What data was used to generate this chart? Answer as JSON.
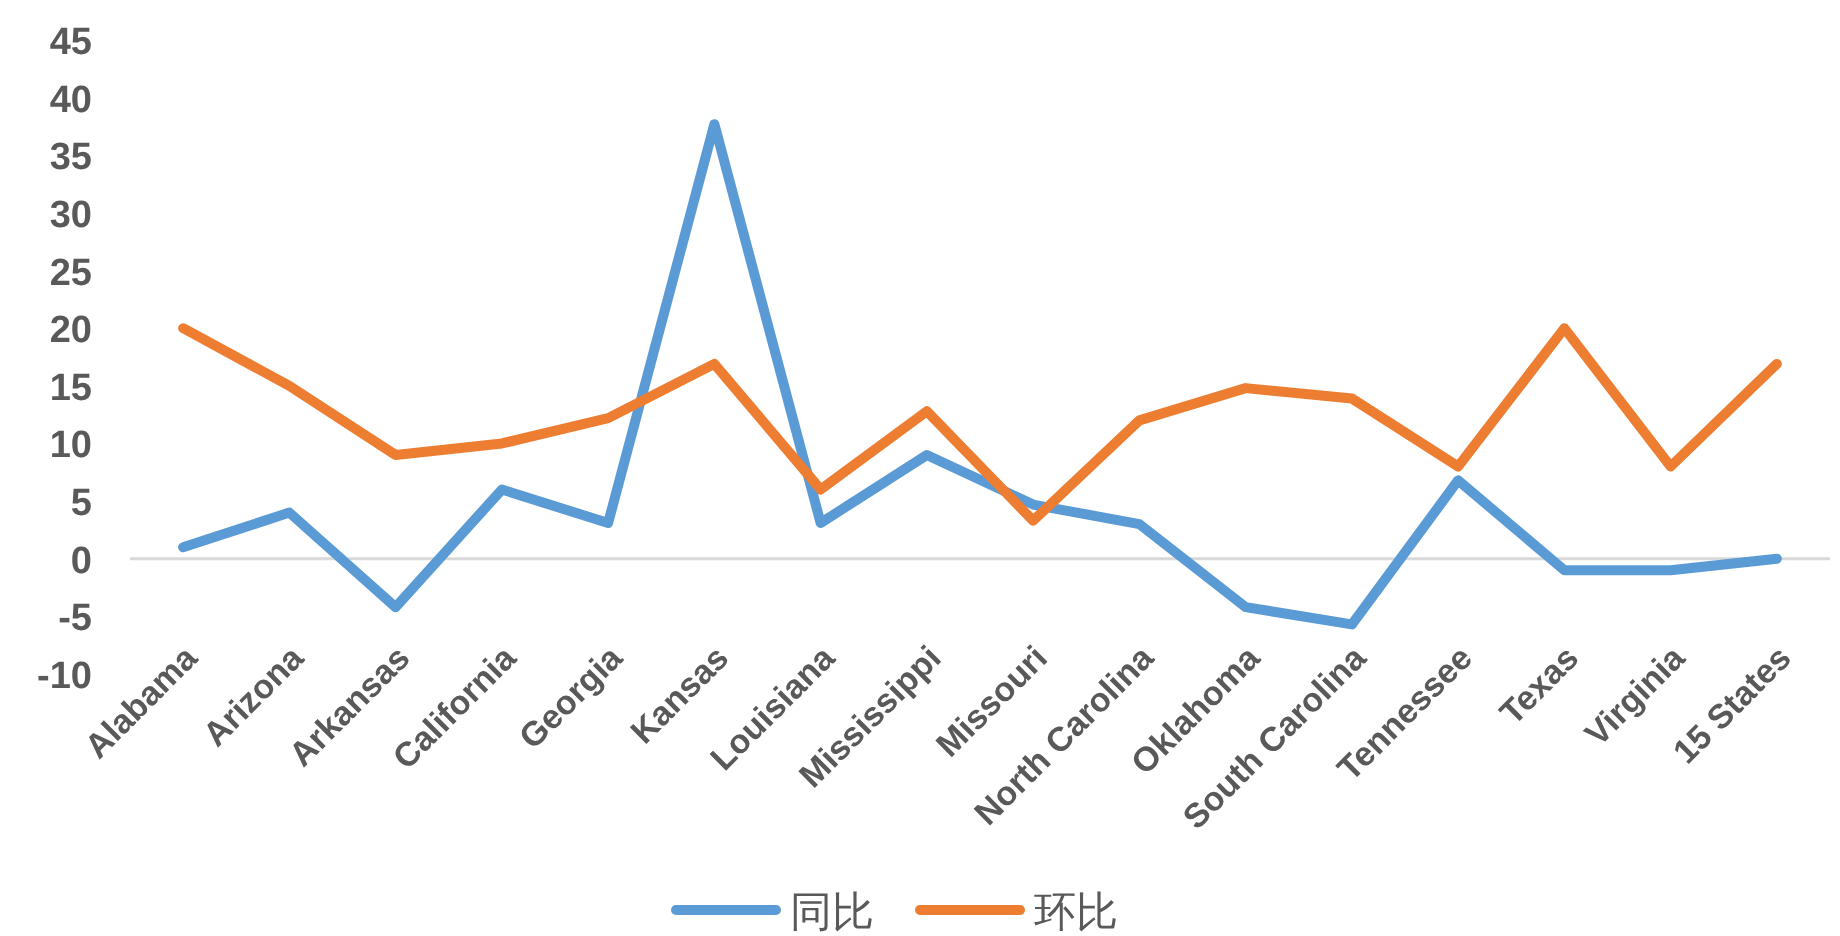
{
  "chart_data": {
    "type": "line",
    "categories": [
      "Alabama",
      "Arizona",
      "Arkansas",
      "California",
      "Georgia",
      "Kansas",
      "Louisiana",
      "Mississippi",
      "Missouri",
      "North Carolina",
      "Oklahoma",
      "South Carolina",
      "Tennessee",
      "Texas",
      "Virginia",
      "15 States"
    ],
    "series": [
      {
        "name": "同比",
        "color": "#5b9bd5",
        "values": [
          1,
          4,
          -4.2,
          6,
          3.1,
          37.7,
          3.1,
          9,
          4.7,
          3,
          -4.2,
          -5.7,
          6.8,
          -1,
          -1,
          0
        ]
      },
      {
        "name": "环比",
        "color": "#ed7d31",
        "values": [
          20,
          15,
          9,
          10,
          12.2,
          16.9,
          6,
          12.8,
          3.3,
          12,
          14.8,
          13.9,
          8,
          20,
          8,
          16.9
        ]
      }
    ],
    "ylim": [
      -10,
      45
    ],
    "yticks": [
      -10,
      -5,
      0,
      5,
      10,
      15,
      20,
      25,
      30,
      35,
      40,
      45
    ],
    "legend": "bottom"
  }
}
